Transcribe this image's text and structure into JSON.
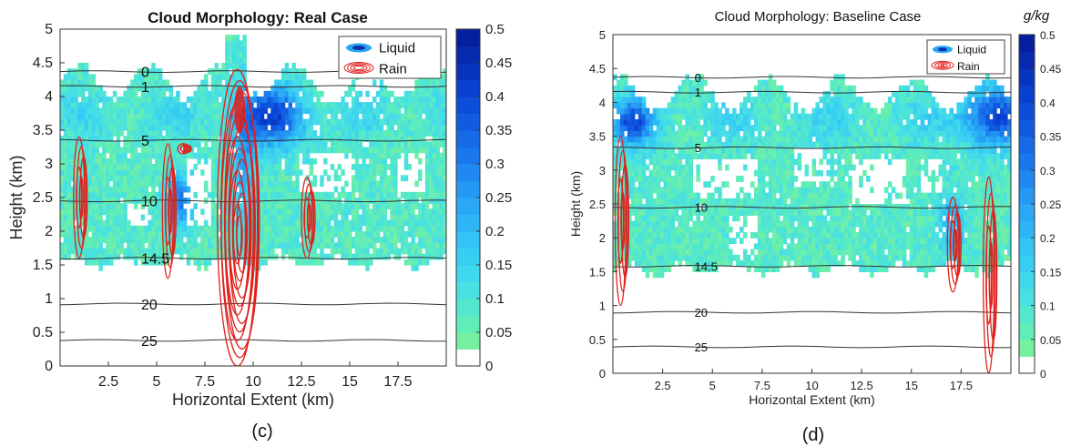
{
  "chart_data": [
    {
      "type": "contour",
      "panel": "(c)",
      "title": "Cloud Morphology: Real Case",
      "xlabel": "Horizontal Extent (km)",
      "ylabel": "Height (km)",
      "xlim": [
        0,
        20
      ],
      "ylim": [
        0,
        5
      ],
      "xticks": [
        "2.5",
        "5",
        "7.5",
        "10",
        "12.5",
        "15",
        "17.5"
      ],
      "yticks": [
        "0",
        "0.5",
        "1",
        "1.5",
        "2",
        "2.5",
        "3",
        "3.5",
        "4",
        "4.5",
        "5"
      ],
      "legend": {
        "position": "top-right",
        "entries": [
          "Liquid",
          "Rain"
        ]
      },
      "colorbar": {
        "label": "",
        "ticks": [
          "0",
          "0.05",
          "0.1",
          "0.15",
          "0.2",
          "0.25",
          "0.3",
          "0.35",
          "0.4",
          "0.45",
          "0.5"
        ],
        "min": 0,
        "max": 0.5
      },
      "temperature_lines": [
        {
          "label": "0",
          "height": 4.37
        },
        {
          "label": "1",
          "height": 4.15
        },
        {
          "label": "5",
          "height": 3.35
        },
        {
          "label": "10",
          "height": 2.45
        },
        {
          "label": "14.5",
          "height": 1.6
        },
        {
          "label": "20",
          "height": 0.92
        },
        {
          "label": "25",
          "height": 0.38
        }
      ],
      "liquid_layer": {
        "base_km": 1.5,
        "top_km": 4.4,
        "max_value": 0.35,
        "max_x_km": 11.0,
        "max_height_km": 3.7
      },
      "rain_cores": [
        {
          "x_km": 1.1,
          "top_km": 3.4,
          "bottom_km": 1.6
        },
        {
          "x_km": 5.7,
          "top_km": 3.3,
          "bottom_km": 1.3
        },
        {
          "x_km": 6.5,
          "top_km": 3.3,
          "bottom_km": 3.15
        },
        {
          "x_km": 9.3,
          "top_km": 4.4,
          "bottom_km": 0
        },
        {
          "x_km": 12.9,
          "top_km": 2.8,
          "bottom_km": 1.6
        }
      ]
    },
    {
      "type": "contour",
      "panel": "(d)",
      "title": "Cloud Morphology: Baseline Case",
      "xlabel": "Horizontal Extent (km)",
      "ylabel": "Height (km)",
      "xlim": [
        0,
        20
      ],
      "ylim": [
        0,
        5
      ],
      "xticks": [
        "2.5",
        "5",
        "7.5",
        "10",
        "12.5",
        "15",
        "17.5"
      ],
      "yticks": [
        "0",
        "0.5",
        "1",
        "1.5",
        "2",
        "2.5",
        "3",
        "3.5",
        "4",
        "4.5",
        "5"
      ],
      "legend": {
        "position": "top-right",
        "entries": [
          "Liquid",
          "Rain"
        ]
      },
      "colorbar": {
        "label": "g/kg",
        "ticks": [
          "0",
          "0.05",
          "0.1",
          "0.15",
          "0.2",
          "0.25",
          "0.3",
          "0.35",
          "0.4",
          "0.45",
          "0.5"
        ],
        "min": 0,
        "max": 0.5
      },
      "temperature_lines": [
        {
          "label": "0",
          "height": 4.37
        },
        {
          "label": "1",
          "height": 4.15
        },
        {
          "label": "5",
          "height": 3.33
        },
        {
          "label": "10",
          "height": 2.45
        },
        {
          "label": "14.5",
          "height": 1.58
        },
        {
          "label": "20",
          "height": 0.9
        },
        {
          "label": "25",
          "height": 0.39
        }
      ],
      "liquid_layer": {
        "base_km": 1.5,
        "top_km": 4.3,
        "max_value": 0.35,
        "max_x_km": 19.2,
        "max_height_km": 3.8
      },
      "rain_cores": [
        {
          "x_km": 0.5,
          "top_km": 3.5,
          "bottom_km": 1.0
        },
        {
          "x_km": 17.2,
          "top_km": 2.6,
          "bottom_km": 1.2
        },
        {
          "x_km": 19.0,
          "top_km": 2.9,
          "bottom_km": 0
        }
      ]
    }
  ]
}
